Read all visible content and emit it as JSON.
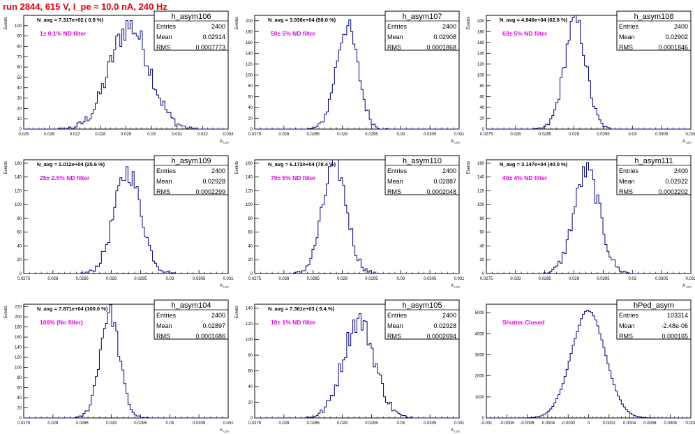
{
  "header": {
    "title": "run 2844,   615 V, I_pe ≈ 10.0 nA, 240 Hz"
  },
  "colors": {
    "histogram": "#00007f",
    "title": "#e8000b",
    "annotation": "#e600e6",
    "axis": "#000000"
  },
  "chart_data": [
    {
      "type": "histogram",
      "name": "h_asym106",
      "stats": {
        "Entries": "2400",
        "Mean": "0.02914",
        "RMS": "0.0007773"
      },
      "navg_text": "N_avg = 7.317e+02 ( 0.9 %)",
      "filter_text": "1± 0.1% ND filter",
      "ylabel": "Events",
      "xlabel": "A",
      "xlim": [
        0.025,
        0.033
      ],
      "ylim": [
        0,
        110
      ],
      "xticks": [
        "0.025",
        "0.026",
        "0.027",
        "0.028",
        "0.029",
        "0.03",
        "0.031",
        "0.032",
        "0.033"
      ],
      "yticks": [
        "0",
        "10",
        "20",
        "30",
        "40",
        "50",
        "60",
        "70",
        "80",
        "90",
        "100"
      ],
      "mean": 0.02914,
      "rms": 0.0007773,
      "peak": 100
    },
    {
      "type": "histogram",
      "name": "h_asym107",
      "stats": {
        "Entries": "2400",
        "Mean": "0.02908",
        "RMS": "0.0001868"
      },
      "navg_text": "N_avg = 3.936e+04 (50.0 %)",
      "filter_text": "50± 5% ND filter",
      "ylabel": "Events",
      "xlabel": "A",
      "xlim": [
        0.0275,
        0.031
      ],
      "ylim": [
        0,
        210
      ],
      "xticks": [
        "0.0275",
        "0.028",
        "0.0285",
        "0.029",
        "0.0295",
        "0.03",
        "0.0305",
        "0.031"
      ],
      "yticks": [
        "0",
        "20",
        "40",
        "60",
        "80",
        "100",
        "120",
        "140",
        "160",
        "180",
        "200"
      ],
      "mean": 0.02908,
      "rms": 0.0001868,
      "peak": 190
    },
    {
      "type": "histogram",
      "name": "h_asym108",
      "stats": {
        "Entries": "2400",
        "Mean": "0.02902",
        "RMS": "0.0001846"
      },
      "navg_text": "N_avg = 4.946e+04 (62.8 %)",
      "filter_text": "63± 5% ND filter",
      "ylabel": "Events",
      "xlabel": "A",
      "xlim": [
        0.0275,
        0.031
      ],
      "ylim": [
        0,
        210
      ],
      "xticks": [
        "0.0275",
        "0.028",
        "0.0285",
        "0.029",
        "0.0295",
        "0.03",
        "0.0305",
        "0.031"
      ],
      "yticks": [
        "0",
        "20",
        "40",
        "60",
        "80",
        "100",
        "120",
        "140",
        "160",
        "180",
        "200"
      ],
      "mean": 0.02902,
      "rms": 0.0001846,
      "peak": 200
    },
    {
      "type": "histogram",
      "name": "h_asym109",
      "stats": {
        "Entries": "2400",
        "Mean": "0.02928",
        "RMS": "0.0002299"
      },
      "navg_text": "N_avg = 2.012e+04 (25.6 %)",
      "filter_text": "25± 2.5% ND filter",
      "ylabel": "Events",
      "xlabel": "A",
      "xlim": [
        0.0275,
        0.031
      ],
      "ylim": [
        0,
        165
      ],
      "xticks": [
        "0.0275",
        "0.028",
        "0.0285",
        "0.029",
        "0.0295",
        "0.03",
        "0.0305",
        "0.031"
      ],
      "yticks": [
        "0",
        "20",
        "40",
        "60",
        "80",
        "100",
        "120",
        "140",
        "160"
      ],
      "mean": 0.02928,
      "rms": 0.0002299,
      "peak": 148
    },
    {
      "type": "histogram",
      "name": "h_asym110",
      "stats": {
        "Entries": "2400",
        "Mean": "0.02887",
        "RMS": "0.0002048"
      },
      "navg_text": "N_avg = 6.172e+04 (78.4 %)",
      "filter_text": "79± 5% ND filter",
      "ylabel": "Events",
      "xlabel": "A",
      "xlim": [
        0.0275,
        0.031
      ],
      "ylim": [
        0,
        165
      ],
      "xticks": [
        "0.0275",
        "0.028",
        "0.0285",
        "0.029",
        "0.0295",
        "0.03",
        "0.0305",
        "0.031"
      ],
      "yticks": [
        "0",
        "20",
        "40",
        "60",
        "80",
        "100",
        "120",
        "140",
        "160"
      ],
      "mean": 0.02887,
      "rms": 0.0002048,
      "peak": 160
    },
    {
      "type": "histogram",
      "name": "h_asym111",
      "stats": {
        "Entries": "2400",
        "Mean": "0.02922",
        "RMS": "0.0002202"
      },
      "navg_text": "N_avg = 3.147e+04 (40.0 %)",
      "filter_text": "40± 4% ND filter",
      "ylabel": "Events",
      "xlabel": "A",
      "xlim": [
        0.0275,
        0.031
      ],
      "ylim": [
        0,
        165
      ],
      "xticks": [
        "0.0275",
        "0.028",
        "0.0285",
        "0.029",
        "0.0295",
        "0.03",
        "0.0305",
        "0.031"
      ],
      "yticks": [
        "0",
        "20",
        "40",
        "60",
        "80",
        "100",
        "120",
        "140",
        "160"
      ],
      "mean": 0.02922,
      "rms": 0.0002202,
      "peak": 148
    },
    {
      "type": "histogram",
      "name": "h_asym104",
      "stats": {
        "Entries": "2400",
        "Mean": "0.02897",
        "RMS": "0.0001686"
      },
      "navg_text": "N_avg = 7.871e+04 (100.0 %)",
      "filter_text": "100% (No filter)",
      "ylabel": "Events",
      "xlabel": "A",
      "xlim": [
        0.0275,
        0.031
      ],
      "ylim": [
        0,
        225
      ],
      "xticks": [
        "0.0275",
        "0.028",
        "0.0285",
        "0.029",
        "0.0295",
        "0.03",
        "0.0305",
        "0.031"
      ],
      "yticks": [
        "0",
        "20",
        "40",
        "60",
        "80",
        "100",
        "120",
        "140",
        "160",
        "180",
        "200",
        "220"
      ],
      "mean": 0.02897,
      "rms": 0.0001686,
      "peak": 208
    },
    {
      "type": "histogram",
      "name": "h_asym105",
      "stats": {
        "Entries": "2400",
        "Mean": "0.02928",
        "RMS": "0.0002694"
      },
      "navg_text": "N_avg = 7.361e+03 ( 9.4 %)",
      "filter_text": "10± 1% ND filter",
      "ylabel": "Events",
      "xlabel": "A",
      "xlim": [
        0.0275,
        0.031
      ],
      "ylim": [
        0,
        145
      ],
      "xticks": [
        "0.0275",
        "0.028",
        "0.0285",
        "0.029",
        "0.0295",
        "0.03",
        "0.0305",
        "0.031"
      ],
      "yticks": [
        "0",
        "20",
        "40",
        "60",
        "80",
        "100",
        "120",
        "140"
      ],
      "mean": 0.02928,
      "rms": 0.0002694,
      "peak": 125
    },
    {
      "type": "histogram",
      "name": "hPed_asym",
      "stats": {
        "Entries": "103314",
        "Mean": "-2.48e-06",
        "RMS": "0.000165"
      },
      "navg_text": "",
      "filter_text": "Shutter Closed",
      "ylabel": "",
      "xlabel": "",
      "xlim": [
        -0.001,
        0.001
      ],
      "ylim": [
        0,
        5400
      ],
      "xticks": [
        "-0.001",
        "-0.0008",
        "-0.0006",
        "-0.0004",
        "-0.0002",
        "0",
        "0.0002",
        "0.0004",
        "0.0006",
        "0.0008",
        "0.001"
      ],
      "yticks": [
        "0",
        "1000",
        "2000",
        "3000",
        "4000",
        "5000"
      ],
      "mean": -2.48e-06,
      "rms": 0.000165,
      "peak": 5100
    }
  ]
}
